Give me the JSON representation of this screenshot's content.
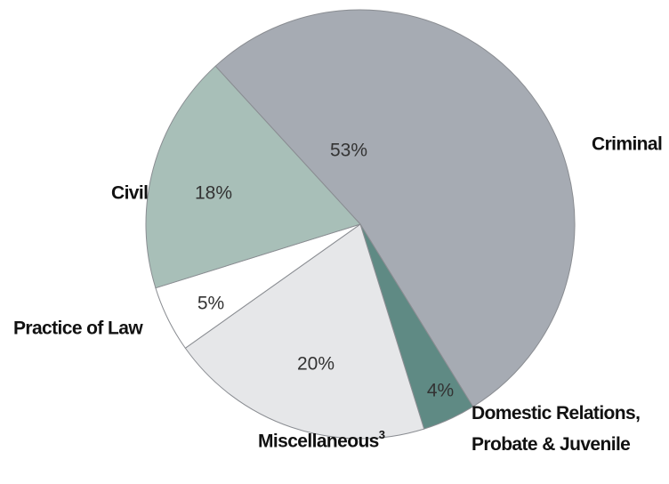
{
  "chart_data": {
    "type": "pie",
    "categories": [
      "Criminal",
      "Domestic Relations, Probate & Juvenile",
      "Miscellaneous",
      "Practice of Law",
      "Civil"
    ],
    "category_notes": [
      null,
      null,
      "3",
      null,
      null
    ],
    "values": [
      53,
      4,
      20,
      5,
      18
    ],
    "value_labels": [
      "53%",
      "4%",
      "20%",
      "5%",
      "18%"
    ],
    "colors": [
      "#a6abb3",
      "#5f8a84",
      "#e6e7e9",
      "#ffffff",
      "#a8bfb8"
    ]
  }
}
